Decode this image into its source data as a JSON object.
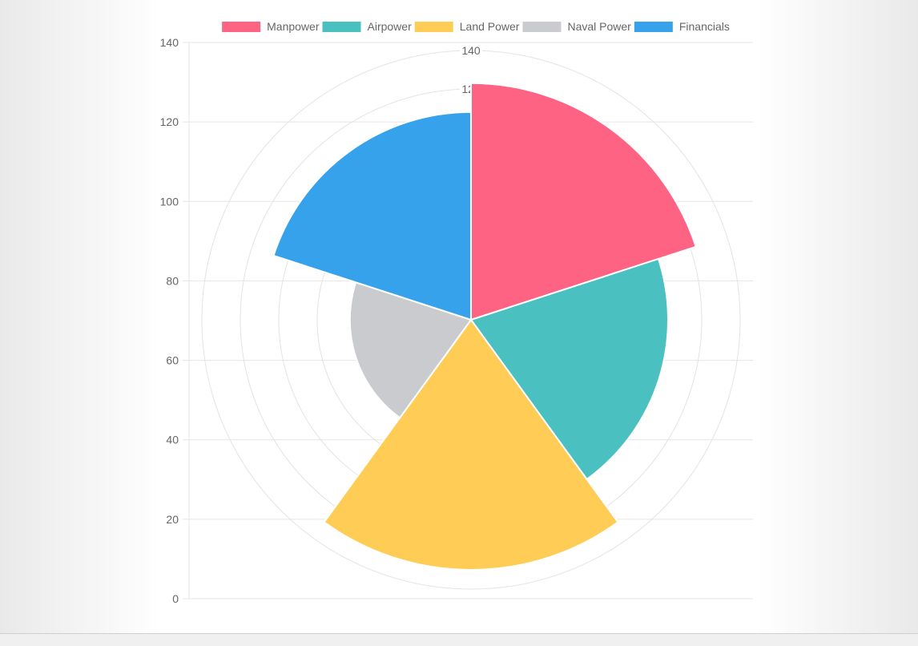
{
  "chart_data": {
    "type": "polarArea",
    "categories": [
      "Manpower",
      "Airpower",
      "Land Power",
      "Naval Power",
      "Financials"
    ],
    "values": [
      123,
      102.5,
      130,
      63,
      108
    ],
    "colors": [
      "#ff6384",
      "#4bc0c0",
      "#ffcd56",
      "#c9cbcf",
      "#36a2eb"
    ],
    "legend": [
      "Manpower",
      "Airpower",
      "Land Power",
      "Naval Power",
      "Financials"
    ],
    "legend_position": "top",
    "radial_axis": {
      "min": 0,
      "max": 140,
      "ticks": [
        "20",
        "40",
        "60",
        "80",
        "100",
        "120",
        "140"
      ]
    },
    "y_axis": {
      "min": 0,
      "max": 140,
      "ticks": [
        "0",
        "20",
        "40",
        "60",
        "80",
        "100",
        "120",
        "140"
      ]
    },
    "grid": true
  }
}
